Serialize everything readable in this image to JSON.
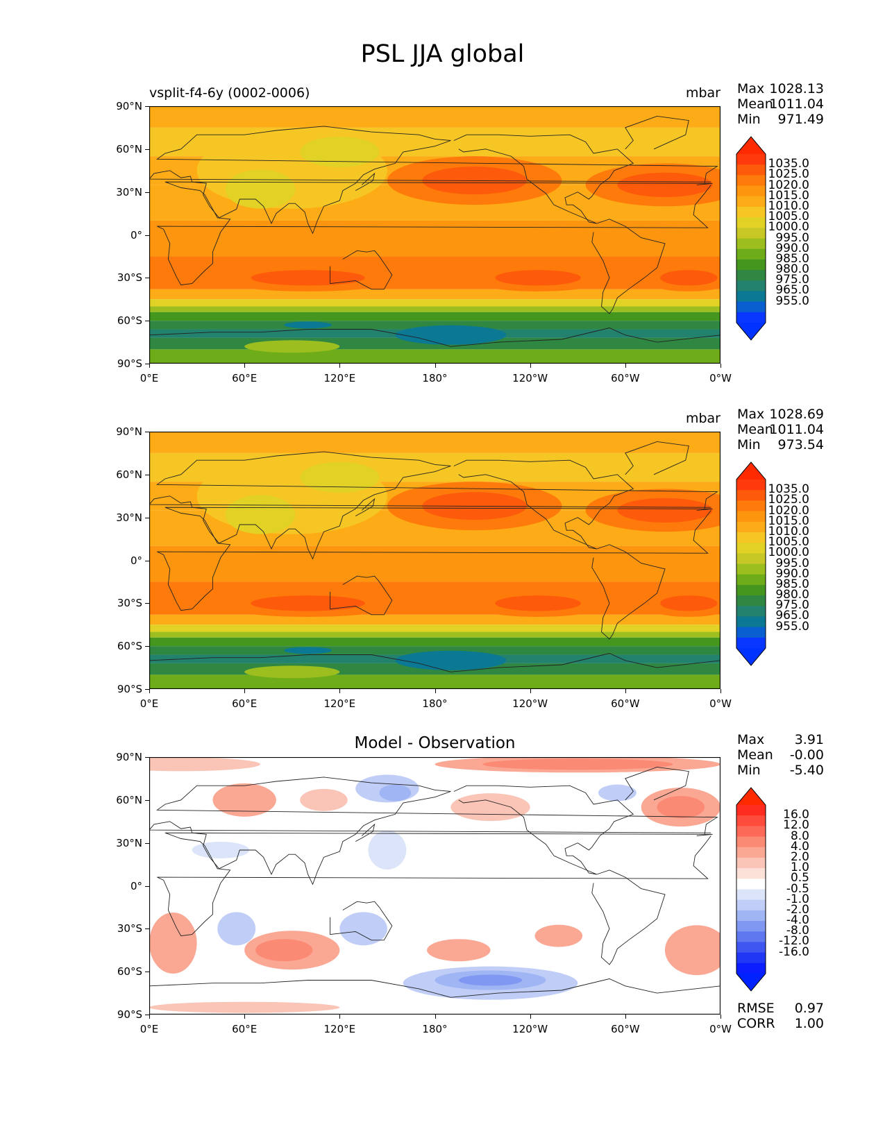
{
  "figure_title": "PSL JJA global",
  "x_ticks": [
    "0°E",
    "60°E",
    "120°E",
    "180°",
    "120°W",
    "60°W",
    "0°W"
  ],
  "y_ticks": [
    "90°N",
    "60°N",
    "30°N",
    "0°",
    "30°S",
    "60°S",
    "90°S"
  ],
  "panels": [
    {
      "title_left": "vsplit-f4-6y (0002-0006)",
      "title_center": "",
      "units": "mbar",
      "stats": [
        {
          "label": "Max",
          "value": "1028.13"
        },
        {
          "label": "Mean",
          "value": "1011.04"
        },
        {
          "label": "Min",
          "value": "971.49"
        }
      ],
      "colorbar_labels": [
        "1035.0",
        "1025.0",
        "1020.0",
        "1015.0",
        "1010.0",
        "1005.0",
        "1000.0",
        "995.0",
        "990.0",
        "985.0",
        "980.0",
        "975.0",
        "965.0",
        "955.0"
      ],
      "colorbar_colors": [
        "#fe3a0c",
        "#fe5a0b",
        "#fe7a0b",
        "#fe950e",
        "#fdab17",
        "#f5c624",
        "#e3d226",
        "#c7c825",
        "#9cbf1f",
        "#6eac1a",
        "#45961f",
        "#2f8742",
        "#23826e",
        "#0b7894",
        "#0a5fd0",
        "#0a37ff"
      ],
      "extreme_colors": {
        "high": "#ff2a00",
        "low": "#0033ff"
      },
      "type": "abs"
    },
    {
      "title_left": "",
      "title_center": "",
      "units": "mbar",
      "stats": [
        {
          "label": "Max",
          "value": "1028.69"
        },
        {
          "label": "Mean",
          "value": "1011.04"
        },
        {
          "label": "Min",
          "value": "973.54"
        }
      ],
      "colorbar_labels": [
        "1035.0",
        "1025.0",
        "1020.0",
        "1015.0",
        "1010.0",
        "1005.0",
        "1000.0",
        "995.0",
        "990.0",
        "985.0",
        "980.0",
        "975.0",
        "965.0",
        "955.0"
      ],
      "colorbar_colors": [
        "#fe3a0c",
        "#fe5a0b",
        "#fe7a0b",
        "#fe950e",
        "#fdab17",
        "#f5c624",
        "#e3d226",
        "#c7c825",
        "#9cbf1f",
        "#6eac1a",
        "#45961f",
        "#2f8742",
        "#23826e",
        "#0b7894",
        "#0a5fd0",
        "#0a37ff"
      ],
      "extreme_colors": {
        "high": "#ff2a00",
        "low": "#0033ff"
      },
      "type": "abs"
    },
    {
      "title_left": "",
      "title_center": "Model - Observation",
      "units": "",
      "stats": [
        {
          "label": "Max",
          "value": "3.91"
        },
        {
          "label": "Mean",
          "value": "-0.00"
        },
        {
          "label": "Min",
          "value": "-5.40"
        }
      ],
      "colorbar_labels": [
        "16.0",
        "12.0",
        "8.0",
        "4.0",
        "2.0",
        "1.0",
        "0.5",
        "-0.5",
        "-1.0",
        "-2.0",
        "-4.0",
        "-8.0",
        "-12.0",
        "-16.0"
      ],
      "colorbar_colors": [
        "#fe2c1f",
        "#fd4b3c",
        "#fc6a57",
        "#fb8a75",
        "#faa894",
        "#fac5b6",
        "#fbe1d8",
        "#ffffff",
        "#dce4fa",
        "#bfcdf7",
        "#a0b5f4",
        "#8098f2",
        "#5f78f0",
        "#3f56f0",
        "#2038f5",
        "#0a1eff"
      ],
      "extreme_colors": {
        "high": "#ff2a00",
        "low": "#0022ff"
      },
      "type": "diff",
      "extra_stats": [
        {
          "label": "RMSE",
          "value": "0.97"
        },
        {
          "label": "CORR",
          "value": "1.00"
        }
      ]
    }
  ]
}
